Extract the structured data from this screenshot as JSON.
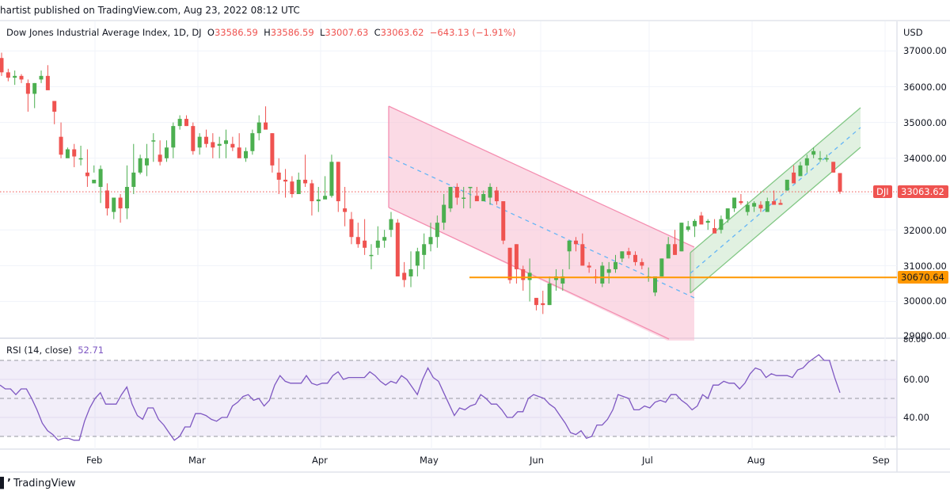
{
  "header": {
    "published_text": "hartist published on TradingView.com, Aug 23, 2022 08:12 UTC"
  },
  "legend": {
    "symbol": "Dow Jones Industrial Average Index, 1D, DJ",
    "open_label": "O",
    "open": "33586.59",
    "high_label": "H",
    "high": "33586.59",
    "low_label": "L",
    "low": "33007.63",
    "close_label": "C",
    "close": "33063.62",
    "change": "−643.13 (−1.91%)"
  },
  "price_axis": {
    "currency": "USD",
    "ticks": [
      "37000.00",
      "36000.00",
      "35000.00",
      "34000.00",
      "32000.00",
      "31000.00",
      "30000.00",
      "29000.00"
    ],
    "last_price_symbol": "DJI",
    "last_price": "33063.62",
    "support_price": "30670.64"
  },
  "rsi": {
    "label": "RSI (14, close)",
    "value": "52.71",
    "ticks": [
      "80.00",
      "60.00",
      "40.00"
    ]
  },
  "time_axis": {
    "labels": [
      "Feb",
      "Mar",
      "Apr",
      "May",
      "Jun",
      "Jul",
      "Aug",
      "Sep"
    ]
  },
  "footer": {
    "brand": "TradingView"
  },
  "colors": {
    "up": "#4caf50",
    "down": "#ef5350",
    "support": "#ff9800",
    "rsi_line": "#7e57c2",
    "down_channel": "#f48fb1",
    "up_channel": "#81c784",
    "midline": "#64b5f6"
  },
  "chart_data": {
    "type": "candlestick",
    "title": "Dow Jones Industrial Average Index, 1D, DJ",
    "ylabel": "USD",
    "ylim": [
      28900,
      37400
    ],
    "x_tick_labels": [
      "Feb",
      "Mar",
      "Apr",
      "May",
      "Jun",
      "Jul",
      "Aug",
      "Sep"
    ],
    "annotations": [
      {
        "type": "descending_channel",
        "from": "Apr 21",
        "to": "Jul 14",
        "color": "pink"
      },
      {
        "type": "ascending_channel",
        "from": "Jul 14",
        "to": "Sep",
        "color": "green"
      },
      {
        "type": "horizontal_line",
        "value": 30670.64,
        "color": "orange"
      },
      {
        "type": "last_price_line",
        "value": 33063.62
      }
    ],
    "last_ohlc": {
      "open": 33586.59,
      "high": 33586.59,
      "low": 33007.63,
      "close": 33063.62,
      "change": -643.13,
      "change_pct": -1.91
    },
    "candles": [
      [
        36800,
        36950,
        36300,
        36400
      ],
      [
        36400,
        36500,
        36150,
        36250
      ],
      [
        36250,
        36450,
        36050,
        36300
      ],
      [
        36300,
        36350,
        36100,
        36200
      ],
      [
        36100,
        36200,
        35300,
        35800
      ],
      [
        35800,
        36100,
        35400,
        36100
      ],
      [
        36200,
        36450,
        36100,
        36300
      ],
      [
        36300,
        36600,
        35900,
        35900
      ],
      [
        35600,
        35600,
        34950,
        35300
      ],
      [
        34600,
        35000,
        34000,
        34100
      ],
      [
        34000,
        34300,
        34150,
        34250
      ],
      [
        34250,
        34400,
        33750,
        34050
      ],
      [
        34000,
        34350,
        33800,
        34000
      ],
      [
        33600,
        34250,
        33200,
        33500
      ],
      [
        33300,
        33600,
        33800,
        33400
      ],
      [
        33200,
        33800,
        32750,
        33700
      ],
      [
        33100,
        33300,
        32400,
        32600
      ],
      [
        32500,
        32900,
        32300,
        32900
      ],
      [
        32900,
        33000,
        32200,
        32600
      ],
      [
        32600,
        33800,
        32300,
        33200
      ],
      [
        33200,
        34400,
        33000,
        33600
      ],
      [
        33600,
        34100,
        33550,
        34000
      ],
      [
        33800,
        34400,
        33500,
        34000
      ],
      [
        34500,
        34700,
        33900,
        34500
      ],
      [
        34100,
        34500,
        33800,
        33900
      ],
      [
        34000,
        34500,
        33900,
        34300
      ],
      [
        34300,
        35000,
        34000,
        34900
      ],
      [
        34900,
        35200,
        34800,
        35100
      ],
      [
        35100,
        35200,
        34900,
        34900
      ],
      [
        34900,
        35000,
        34100,
        34200
      ],
      [
        34300,
        34700,
        34100,
        34600
      ],
      [
        34600,
        34800,
        34300,
        34400
      ],
      [
        34450,
        34700,
        34000,
        34300
      ],
      [
        34350,
        34600,
        34000,
        34400
      ],
      [
        34400,
        34800,
        34000,
        34500
      ],
      [
        34400,
        34600,
        34200,
        34300
      ],
      [
        34300,
        34700,
        34100,
        34000
      ],
      [
        34000,
        34300,
        33900,
        34200
      ],
      [
        34200,
        34800,
        34100,
        34700
      ],
      [
        34700,
        35200,
        34500,
        35000
      ],
      [
        35000,
        35450,
        34900,
        34800
      ],
      [
        34700,
        34700,
        33600,
        33800
      ],
      [
        33600,
        34000,
        33000,
        33400
      ],
      [
        33400,
        33700,
        32900,
        33350
      ],
      [
        33350,
        33500,
        32900,
        33000
      ],
      [
        33000,
        33600,
        33000,
        33400
      ],
      [
        33400,
        34100,
        33200,
        33300
      ],
      [
        33300,
        33400,
        32400,
        32800
      ],
      [
        32800,
        33200,
        32500,
        32850
      ],
      [
        32850,
        33500,
        32900,
        32950
      ],
      [
        32950,
        34100,
        32900,
        33900
      ],
      [
        33900,
        33900,
        32500,
        32800
      ],
      [
        32600,
        33200,
        32100,
        32500
      ],
      [
        32300,
        32500,
        31600,
        31800
      ],
      [
        31800,
        32200,
        31500,
        31600
      ],
      [
        31700,
        32300,
        31300,
        31500
      ],
      [
        31300,
        31600,
        30900,
        31300
      ],
      [
        31500,
        32100,
        31300,
        31700
      ],
      [
        31700,
        32000,
        31500,
        31800
      ],
      [
        32000,
        32500,
        31800,
        32300
      ],
      [
        32200,
        32300,
        30700,
        30700
      ],
      [
        30800,
        31100,
        30400,
        30600
      ],
      [
        30700,
        31400,
        30400,
        30900
      ],
      [
        31000,
        31500,
        30700,
        31400
      ],
      [
        31300,
        31900,
        30900,
        31600
      ],
      [
        31600,
        32200,
        31400,
        31800
      ],
      [
        31800,
        32400,
        31500,
        32200
      ],
      [
        32200,
        33000,
        32000,
        32700
      ],
      [
        32600,
        33200,
        32500,
        33200
      ],
      [
        33200,
        33300,
        32700,
        32900
      ],
      [
        32900,
        33200,
        32600,
        32900
      ],
      [
        33200,
        33200,
        32600,
        33200
      ],
      [
        32950,
        33200,
        32800,
        32800
      ],
      [
        32800,
        33100,
        32800,
        33000
      ],
      [
        32900,
        33300,
        32700,
        33200
      ],
      [
        33100,
        33200,
        32700,
        32800
      ],
      [
        32800,
        32800,
        31600,
        31700
      ],
      [
        31500,
        31500,
        30500,
        30600
      ],
      [
        31600,
        31600,
        30500,
        30900
      ],
      [
        30900,
        31000,
        30300,
        30600
      ],
      [
        30600,
        31200,
        30000,
        30800
      ],
      [
        30100,
        30100,
        29750,
        29900
      ],
      [
        29950,
        30300,
        29650,
        29900
      ],
      [
        29900,
        30700,
        29900,
        30500
      ],
      [
        30600,
        30900,
        30300,
        30700
      ],
      [
        30500,
        30900,
        30300,
        30700
      ],
      [
        31400,
        31700,
        30900,
        31700
      ],
      [
        31700,
        31800,
        31400,
        31600
      ],
      [
        31600,
        31900,
        31000,
        31000
      ],
      [
        31000,
        31100,
        30800,
        30950
      ],
      [
        30700,
        30900,
        30500,
        30650
      ],
      [
        30500,
        31100,
        30400,
        31000
      ],
      [
        30800,
        31100,
        30500,
        30900
      ],
      [
        30900,
        31300,
        30800,
        31100
      ],
      [
        31200,
        31400,
        31100,
        31400
      ],
      [
        31400,
        31500,
        31200,
        31300
      ],
      [
        31300,
        31400,
        31000,
        31100
      ],
      [
        31100,
        31200,
        30900,
        31000
      ],
      [
        30700,
        30950,
        30550,
        30700
      ],
      [
        30250,
        30650,
        30150,
        30700
      ],
      [
        30700,
        31200,
        30700,
        31200
      ],
      [
        31200,
        31800,
        31300,
        31600
      ],
      [
        31600,
        32000,
        31300,
        31300
      ],
      [
        31400,
        32200,
        31400,
        32200
      ],
      [
        32000,
        32250,
        31950,
        32100
      ],
      [
        32100,
        32300,
        31800,
        32250
      ],
      [
        32400,
        32500,
        32200,
        32150
      ],
      [
        32200,
        32300,
        32000,
        32250
      ],
      [
        32050,
        32300,
        31950,
        31900
      ],
      [
        32000,
        32400,
        31900,
        32300
      ],
      [
        32300,
        32600,
        32200,
        32600
      ],
      [
        32600,
        32900,
        32500,
        32900
      ],
      [
        32800,
        33000,
        32700,
        32750
      ],
      [
        32500,
        32800,
        32400,
        32700
      ],
      [
        32650,
        32800,
        32500,
        32750
      ],
      [
        32700,
        32800,
        32500,
        32600
      ],
      [
        32500,
        32900,
        32600,
        32800
      ],
      [
        32800,
        33100,
        32800,
        32700
      ],
      [
        32750,
        32850,
        32700,
        32700
      ],
      [
        33100,
        33400,
        33100,
        33400
      ],
      [
        33600,
        33800,
        33300,
        33300
      ],
      [
        33500,
        33900,
        33500,
        33800
      ],
      [
        33800,
        34100,
        33600,
        34000
      ],
      [
        34100,
        34300,
        34000,
        34200
      ],
      [
        34000,
        34200,
        33900,
        34000
      ],
      [
        34000,
        34100,
        33900,
        34000
      ],
      [
        33900,
        33900,
        33600,
        33600
      ],
      [
        33586.59,
        33586.59,
        33007.63,
        33063.62
      ]
    ],
    "rsi_series_note": "RSI(14) oscillates 28-75; last value 52.71; bands at 70/50/30",
    "rsi_values": [
      57,
      55,
      55,
      52,
      55,
      55,
      50,
      44,
      37,
      33,
      31,
      28,
      29,
      29,
      28,
      28,
      38,
      45,
      50,
      53,
      47,
      47,
      47,
      52,
      56,
      47,
      41,
      39,
      45,
      45,
      39,
      36,
      32,
      28,
      30,
      35,
      35,
      42,
      42,
      41,
      39,
      38,
      40,
      40,
      46,
      48,
      51,
      52,
      49,
      50,
      46,
      49,
      57,
      62,
      59,
      58,
      58,
      58,
      62,
      58,
      57,
      58,
      58,
      62,
      64,
      60,
      61,
      61,
      61,
      61,
      64,
      62,
      59,
      57,
      59,
      58,
      62,
      60,
      56,
      52,
      60,
      66,
      61,
      59,
      53,
      47,
      41,
      45,
      44,
      46,
      47,
      52,
      50,
      47,
      47,
      44,
      40,
      40,
      43,
      43,
      50,
      52,
      51,
      50,
      47,
      45,
      41,
      37,
      32,
      31,
      33,
      29,
      30,
      36,
      36,
      39,
      44,
      52,
      51,
      50,
      44,
      44,
      46,
      45,
      48,
      49,
      48,
      52,
      52,
      49,
      47,
      44,
      46,
      52,
      50,
      57,
      57,
      59,
      58,
      58,
      55,
      58,
      63,
      66,
      65,
      61,
      63,
      62,
      62,
      62,
      61,
      65,
      66,
      69,
      71,
      73,
      70,
      70,
      61,
      53
    ]
  }
}
